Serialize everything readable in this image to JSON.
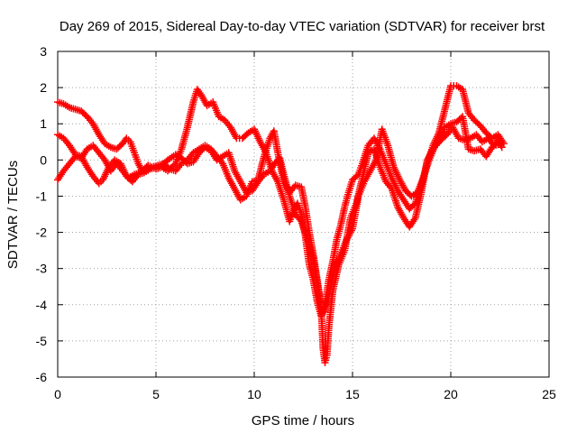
{
  "chart_data": {
    "type": "scatter",
    "title": "Day 269 of 2015, Sidereal Day-to-day VTEC variation (SDTVAR) for receiver brst",
    "xlabel": "GPS time / hours",
    "ylabel": "SDTVAR / TECUs",
    "xlim": [
      0,
      25
    ],
    "ylim": [
      -6,
      3
    ],
    "x_ticks": [
      "0",
      "5",
      "10",
      "15",
      "20",
      "25"
    ],
    "y_ticks": [
      "-6",
      "-5",
      "-4",
      "-3",
      "-2",
      "-1",
      "0",
      "1",
      "2",
      "3"
    ],
    "grid": true,
    "marker": "+",
    "marker_color": "#ff0000",
    "series": [
      {
        "points": [
          [
            0,
            1.6
          ],
          [
            0.3,
            1.55
          ],
          [
            0.6,
            1.45
          ],
          [
            0.9,
            1.4
          ],
          [
            1.2,
            1.35
          ],
          [
            1.5,
            1.2
          ],
          [
            1.8,
            1.0
          ],
          [
            2.1,
            0.7
          ],
          [
            2.4,
            0.45
          ],
          [
            2.7,
            0.35
          ],
          [
            3.0,
            0.3
          ],
          [
            3.3,
            0.45
          ],
          [
            3.5,
            0.6
          ],
          [
            3.7,
            0.5
          ],
          [
            3.9,
            0.2
          ],
          [
            4.1,
            -0.1
          ],
          [
            4.3,
            -0.3
          ],
          [
            4.6,
            -0.15
          ],
          [
            5.0,
            -0.25
          ],
          [
            5.3,
            -0.2
          ],
          [
            5.6,
            -0.3
          ],
          [
            6.0,
            -0.1
          ],
          [
            6.3,
            0.3
          ],
          [
            6.6,
            0.9
          ],
          [
            6.9,
            1.6
          ],
          [
            7.1,
            1.95
          ],
          [
            7.3,
            1.8
          ],
          [
            7.6,
            1.5
          ],
          [
            7.9,
            1.6
          ],
          [
            8.2,
            1.2
          ],
          [
            8.5,
            1.1
          ],
          [
            8.8,
            0.9
          ],
          [
            9.1,
            0.6
          ],
          [
            9.4,
            0.6
          ],
          [
            9.7,
            0.75
          ],
          [
            10.0,
            0.85
          ],
          [
            10.3,
            0.5
          ],
          [
            10.6,
            0.2
          ],
          [
            10.9,
            -0.3
          ],
          [
            11.2,
            -0.6
          ],
          [
            11.5,
            -1.1
          ],
          [
            11.8,
            -1.7
          ],
          [
            12.0,
            -1.4
          ],
          [
            12.2,
            -1.2
          ],
          [
            12.4,
            -1.5
          ],
          [
            12.6,
            -2.1
          ],
          [
            12.8,
            -2.9
          ],
          [
            13.0,
            -3.3
          ],
          [
            13.2,
            -3.9
          ],
          [
            13.4,
            -4.3
          ],
          [
            13.6,
            -4.0
          ],
          [
            13.8,
            -3.3
          ],
          [
            14.0,
            -2.8
          ],
          [
            14.2,
            -2.2
          ],
          [
            14.4,
            -1.8
          ],
          [
            14.6,
            -1.3
          ],
          [
            14.8,
            -0.9
          ],
          [
            15.0,
            -0.55
          ],
          [
            15.3,
            -0.4
          ],
          [
            15.5,
            -0.1
          ],
          [
            15.8,
            0.4
          ],
          [
            16.1,
            0.6
          ],
          [
            16.4,
            0.3
          ],
          [
            16.7,
            -0.1
          ],
          [
            17.0,
            -0.5
          ],
          [
            17.3,
            -0.85
          ],
          [
            17.6,
            -1.1
          ],
          [
            17.9,
            -1.35
          ],
          [
            18.2,
            -1.2
          ],
          [
            18.5,
            -0.7
          ],
          [
            18.8,
            -0.1
          ],
          [
            19.1,
            0.4
          ],
          [
            19.4,
            0.75
          ],
          [
            19.7,
            1.4
          ],
          [
            20.0,
            2.05
          ],
          [
            20.3,
            2.05
          ],
          [
            20.6,
            1.95
          ],
          [
            20.9,
            1.3
          ],
          [
            21.2,
            1.1
          ],
          [
            21.5,
            0.95
          ],
          [
            21.8,
            0.75
          ],
          [
            22.1,
            0.6
          ],
          [
            22.4,
            0.7
          ],
          [
            22.7,
            0.45
          ]
        ]
      },
      {
        "points": [
          [
            0,
            0.7
          ],
          [
            0.3,
            0.6
          ],
          [
            0.6,
            0.4
          ],
          [
            0.9,
            0.15
          ],
          [
            1.2,
            0.1
          ],
          [
            1.5,
            -0.2
          ],
          [
            1.8,
            -0.45
          ],
          [
            2.1,
            -0.65
          ],
          [
            2.3,
            -0.55
          ],
          [
            2.6,
            -0.2
          ],
          [
            2.9,
            0.0
          ],
          [
            3.2,
            -0.1
          ],
          [
            3.5,
            -0.45
          ],
          [
            3.8,
            -0.6
          ],
          [
            4.1,
            -0.4
          ],
          [
            4.4,
            -0.35
          ],
          [
            4.7,
            -0.25
          ],
          [
            5.0,
            -0.2
          ],
          [
            5.3,
            -0.15
          ],
          [
            5.6,
            0.0
          ],
          [
            6.0,
            0.15
          ],
          [
            6.3,
            0.05
          ],
          [
            6.6,
            -0.1
          ],
          [
            6.9,
            -0.05
          ],
          [
            7.2,
            0.2
          ],
          [
            7.5,
            0.35
          ],
          [
            7.8,
            0.25
          ],
          [
            8.1,
            0.0
          ],
          [
            8.4,
            0.1
          ],
          [
            8.7,
            0.2
          ],
          [
            9.0,
            -0.3
          ],
          [
            9.3,
            -0.6
          ],
          [
            9.6,
            -0.9
          ],
          [
            9.9,
            -0.85
          ],
          [
            10.2,
            -0.6
          ],
          [
            10.5,
            -0.4
          ],
          [
            10.8,
            -0.3
          ],
          [
            11.1,
            -0.05
          ],
          [
            11.3,
            0.05
          ],
          [
            11.5,
            -0.4
          ],
          [
            11.8,
            -1.0
          ],
          [
            12.1,
            -1.5
          ],
          [
            12.4,
            -1.7
          ],
          [
            12.7,
            -2.2
          ],
          [
            13.0,
            -2.7
          ],
          [
            13.2,
            -3.4
          ],
          [
            13.4,
            -4.1
          ],
          [
            13.6,
            -4.2
          ],
          [
            13.8,
            -3.7
          ],
          [
            14.1,
            -3.0
          ],
          [
            14.4,
            -2.6
          ],
          [
            14.7,
            -2.2
          ],
          [
            15.0,
            -1.9
          ],
          [
            15.3,
            -1.0
          ],
          [
            15.6,
            -0.6
          ],
          [
            15.9,
            -0.3
          ],
          [
            16.2,
            0.0
          ],
          [
            16.5,
            0.85
          ],
          [
            16.8,
            0.4
          ],
          [
            17.1,
            -0.2
          ],
          [
            17.4,
            -0.55
          ],
          [
            17.7,
            -0.85
          ],
          [
            18.0,
            -1.0
          ],
          [
            18.3,
            -0.9
          ],
          [
            18.6,
            -0.5
          ],
          [
            18.9,
            0.0
          ],
          [
            19.2,
            0.4
          ],
          [
            19.5,
            0.55
          ],
          [
            19.8,
            0.7
          ],
          [
            20.1,
            0.9
          ],
          [
            20.4,
            0.6
          ],
          [
            20.7,
            0.55
          ],
          [
            21.0,
            0.6
          ],
          [
            21.3,
            0.7
          ],
          [
            21.6,
            0.5
          ],
          [
            21.9,
            0.6
          ],
          [
            22.2,
            0.4
          ],
          [
            22.6,
            0.45
          ]
        ]
      },
      {
        "points": [
          [
            0,
            -0.55
          ],
          [
            0.3,
            -0.3
          ],
          [
            0.6,
            -0.1
          ],
          [
            0.9,
            0.1
          ],
          [
            1.2,
            0.05
          ],
          [
            1.5,
            0.3
          ],
          [
            1.8,
            0.4
          ],
          [
            2.1,
            0.2
          ],
          [
            2.4,
            0.0
          ],
          [
            2.7,
            -0.3
          ],
          [
            3.0,
            -0.1
          ],
          [
            3.3,
            -0.3
          ],
          [
            3.6,
            -0.5
          ],
          [
            3.9,
            -0.4
          ],
          [
            4.2,
            -0.35
          ],
          [
            4.5,
            -0.3
          ],
          [
            4.8,
            -0.2
          ],
          [
            5.1,
            -0.15
          ],
          [
            5.4,
            -0.1
          ],
          [
            5.7,
            -0.25
          ],
          [
            6.0,
            -0.3
          ],
          [
            6.3,
            -0.1
          ],
          [
            6.6,
            0.0
          ],
          [
            6.9,
            0.2
          ],
          [
            7.2,
            0.3
          ],
          [
            7.5,
            0.4
          ],
          [
            7.8,
            0.3
          ],
          [
            8.1,
            0.1
          ],
          [
            8.4,
            -0.1
          ],
          [
            8.7,
            -0.5
          ],
          [
            9.0,
            -0.8
          ],
          [
            9.3,
            -1.1
          ],
          [
            9.6,
            -1.0
          ],
          [
            9.9,
            -0.6
          ],
          [
            10.2,
            -0.55
          ],
          [
            10.5,
            0.1
          ],
          [
            10.8,
            0.6
          ],
          [
            11.0,
            0.8
          ],
          [
            11.2,
            0.2
          ],
          [
            11.5,
            -0.6
          ],
          [
            11.8,
            -0.9
          ],
          [
            12.1,
            -0.7
          ],
          [
            12.4,
            -0.75
          ],
          [
            12.6,
            -1.3
          ],
          [
            12.8,
            -2.0
          ],
          [
            13.0,
            -2.6
          ],
          [
            13.2,
            -3.3
          ],
          [
            13.4,
            -4.0
          ],
          [
            13.5,
            -5.2
          ],
          [
            13.6,
            -5.6
          ],
          [
            13.7,
            -5.4
          ],
          [
            13.8,
            -4.6
          ],
          [
            14.0,
            -3.6
          ],
          [
            14.3,
            -2.9
          ],
          [
            14.6,
            -2.5
          ],
          [
            14.9,
            -1.6
          ],
          [
            15.2,
            -1.2
          ],
          [
            15.5,
            -0.5
          ],
          [
            15.8,
            0.2
          ],
          [
            16.1,
            0.3
          ],
          [
            16.4,
            -0.2
          ],
          [
            16.7,
            -0.6
          ],
          [
            17.0,
            -0.8
          ],
          [
            17.3,
            -1.3
          ],
          [
            17.6,
            -1.6
          ],
          [
            17.9,
            -1.85
          ],
          [
            18.2,
            -1.6
          ],
          [
            18.5,
            -0.9
          ],
          [
            18.8,
            0.0
          ],
          [
            19.1,
            0.3
          ],
          [
            19.4,
            0.5
          ],
          [
            19.7,
            0.9
          ],
          [
            20.0,
            1.0
          ],
          [
            20.3,
            1.05
          ],
          [
            20.6,
            1.2
          ],
          [
            20.9,
            0.3
          ],
          [
            21.2,
            0.25
          ],
          [
            21.5,
            0.3
          ],
          [
            21.8,
            0.1
          ],
          [
            22.1,
            0.35
          ],
          [
            22.4,
            0.55
          ],
          [
            22.6,
            0.35
          ]
        ]
      }
    ]
  }
}
